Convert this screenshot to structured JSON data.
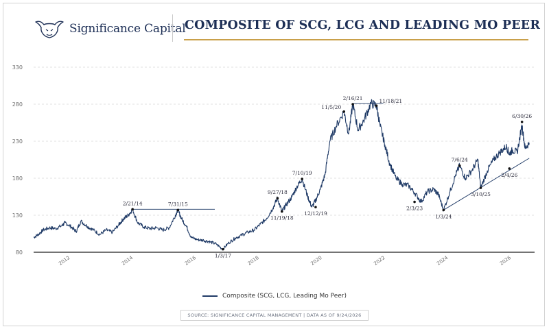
{
  "brand": {
    "name": "Significance Capital",
    "logo_icon": "bull-head-icon"
  },
  "colors": {
    "navy": "#1c2e55",
    "line": "#1f3a66",
    "gold": "#c9a04a",
    "grid": "#d6d6d6",
    "axis_text": "#6b6b6b",
    "annotation": "#2a2a3a"
  },
  "footer": {
    "source": "SOURCE: SIGNIFICANCE CAPITAL MANAGEMENT   |   DATA AS OF 9/24/2026"
  },
  "chart_data": {
    "type": "line",
    "title": "COMPOSITE OF SCG, LCG AND LEADING MO PEER",
    "xlabel": "",
    "ylabel": "",
    "ylim": [
      80,
      330
    ],
    "yticks": [
      80,
      130,
      180,
      230,
      280,
      330
    ],
    "xlim": [
      2011.0,
      2026.9
    ],
    "xticks": [
      2012,
      2014,
      2016,
      2018,
      2020,
      2022,
      2024,
      2026
    ],
    "grid": "horizontal dashed",
    "legend_position": "bottom-center",
    "series": [
      {
        "name": "Composite (SCG, LCG, Leading Mo Peer)",
        "x": [
          2011.0,
          2011.15,
          2011.3,
          2011.5,
          2011.7,
          2011.9,
          2012.0,
          2012.2,
          2012.35,
          2012.5,
          2012.7,
          2012.9,
          2013.1,
          2013.3,
          2013.5,
          2013.7,
          2013.85,
          2014.0,
          2014.14,
          2014.3,
          2014.5,
          2014.7,
          2014.9,
          2015.1,
          2015.3,
          2015.5,
          2015.58,
          2015.7,
          2015.85,
          2016.0,
          2016.2,
          2016.4,
          2016.6,
          2016.8,
          2017.0,
          2017.2,
          2017.4,
          2017.6,
          2017.8,
          2018.0,
          2018.2,
          2018.4,
          2018.6,
          2018.74,
          2018.88,
          2019.0,
          2019.2,
          2019.35,
          2019.52,
          2019.7,
          2019.83,
          2019.95,
          2020.1,
          2020.25,
          2020.4,
          2020.6,
          2020.85,
          2021.0,
          2021.13,
          2021.3,
          2021.5,
          2021.7,
          2021.88,
          2022.0,
          2022.15,
          2022.3,
          2022.5,
          2022.7,
          2022.9,
          2023.1,
          2023.3,
          2023.5,
          2023.7,
          2023.85,
          2024.01,
          2024.2,
          2024.4,
          2024.52,
          2024.7,
          2024.9,
          2025.1,
          2025.19,
          2025.4,
          2025.6,
          2025.8,
          2026.0,
          2026.1,
          2026.2,
          2026.35,
          2026.5,
          2026.6,
          2026.73
        ],
        "values": [
          100,
          104,
          110,
          113,
          112,
          116,
          120,
          114,
          108,
          122,
          115,
          110,
          104,
          110,
          107,
          117,
          125,
          130,
          138,
          120,
          114,
          112,
          113,
          110,
          113,
          130,
          137,
          125,
          115,
          100,
          97,
          96,
          94,
          91,
          84,
          93,
          99,
          103,
          107,
          110,
          118,
          126,
          140,
          153,
          135,
          143,
          155,
          168,
          179,
          155,
          141,
          150,
          165,
          185,
          230,
          250,
          270,
          240,
          280,
          245,
          260,
          281,
          278,
          250,
          225,
          200,
          180,
          172,
          170,
          160,
          148,
          162,
          165,
          158,
          137,
          160,
          185,
          197,
          180,
          190,
          205,
          167,
          190,
          205,
          215,
          223,
          213,
          218,
          215,
          252,
          220,
          228
        ]
      }
    ],
    "annotations": [
      {
        "label": "2/21/14",
        "x": 2014.14,
        "y": 138,
        "position": "above"
      },
      {
        "label": "7/31/15",
        "x": 2015.58,
        "y": 137,
        "position": "above"
      },
      {
        "label": "1/3/17",
        "x": 2017.01,
        "y": 84,
        "position": "below"
      },
      {
        "label": "9/27/18",
        "x": 2018.74,
        "y": 153,
        "position": "above"
      },
      {
        "label": "11/19/18",
        "x": 2018.88,
        "y": 135,
        "position": "below"
      },
      {
        "label": "7/10/19",
        "x": 2019.52,
        "y": 179,
        "position": "above"
      },
      {
        "label": "12/12/19",
        "x": 2019.95,
        "y": 141,
        "position": "below"
      },
      {
        "label": "11/5/20",
        "x": 2020.85,
        "y": 270,
        "position": "left-above"
      },
      {
        "label": "2/16/21",
        "x": 2021.13,
        "y": 280,
        "position": "above"
      },
      {
        "label": "11/18/21",
        "x": 2021.88,
        "y": 278,
        "position": "right-above"
      },
      {
        "label": "2/3/23",
        "x": 2023.09,
        "y": 148,
        "position": "below"
      },
      {
        "label": "1/3/24",
        "x": 2024.01,
        "y": 137,
        "position": "below"
      },
      {
        "label": "7/6/24",
        "x": 2024.52,
        "y": 197,
        "position": "above"
      },
      {
        "label": "3/10/25",
        "x": 2025.19,
        "y": 167,
        "position": "below"
      },
      {
        "label": "2/4/26",
        "x": 2026.1,
        "y": 193,
        "position": "below"
      },
      {
        "label": "6/30/26",
        "x": 2026.5,
        "y": 256,
        "position": "above"
      }
    ],
    "reference_lines": [
      {
        "from": [
          2014.14,
          138
        ],
        "to": [
          2016.75,
          138
        ],
        "kind": "resistance"
      },
      {
        "from": [
          2021.13,
          281
        ],
        "to": [
          2022.1,
          281
        ],
        "kind": "resistance"
      },
      {
        "from": [
          2024.01,
          137
        ],
        "to": [
          2026.73,
          207
        ],
        "kind": "support-trend"
      }
    ]
  }
}
